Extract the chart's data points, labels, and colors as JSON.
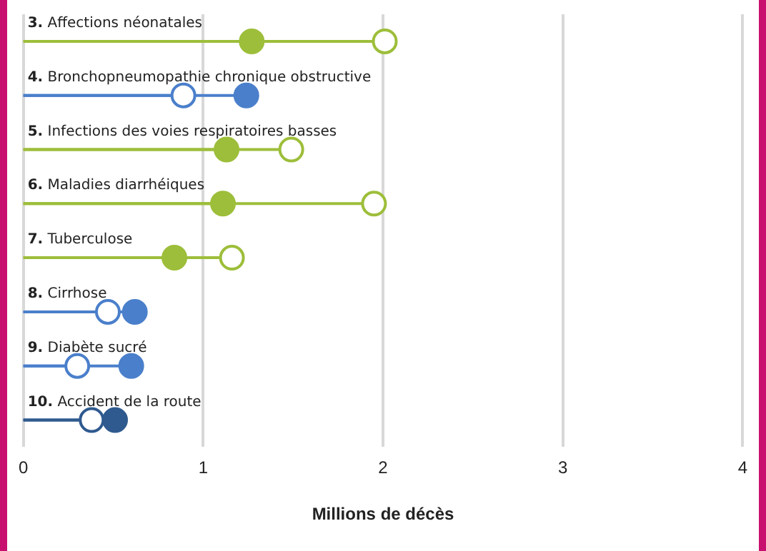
{
  "chart_data": {
    "type": "lollipop",
    "orientation": "horizontal",
    "xlabel": "Millions de décès",
    "categories": [
      "3. Affections néonatales",
      "4. Bronchopneumopathie chronique obstructive",
      "5. Infections des voies respiratoires basses",
      "6. Maladies diarrhéiques",
      "7. Tuberculose",
      "8. Cirrhose",
      "9. Diabète sucré",
      "10. Accident de la route"
    ],
    "series": [
      {
        "colors": [
          "#9dbe3a",
          "#4a7fcb",
          "#9dbe3a",
          "#9dbe3a",
          "#9dbe3a",
          "#4a7fcb",
          "#4a7fcb",
          "#2f5a8f"
        ],
        "values": [
          2.01,
          0.89,
          1.49,
          1.95,
          1.16,
          0.47,
          0.3,
          0.38
        ]
      },
      {
        "colors": [
          "#9dbe3a",
          "#4a7fcb",
          "#9dbe3a",
          "#9dbe3a",
          "#9dbe3a",
          "#4a7fcb",
          "#4a7fcb",
          "#2f5a8f"
        ],
        "values": [
          1.27,
          1.24,
          1.13,
          1.11,
          0.84,
          0.62,
          0.6,
          0.51
        ]
      }
    ],
    "xlim": [
      0,
      4
    ],
    "xticks": [
      0,
      1,
      2,
      3,
      4
    ],
    "grid": "x",
    "marker": "circle",
    "legend": false
  }
}
